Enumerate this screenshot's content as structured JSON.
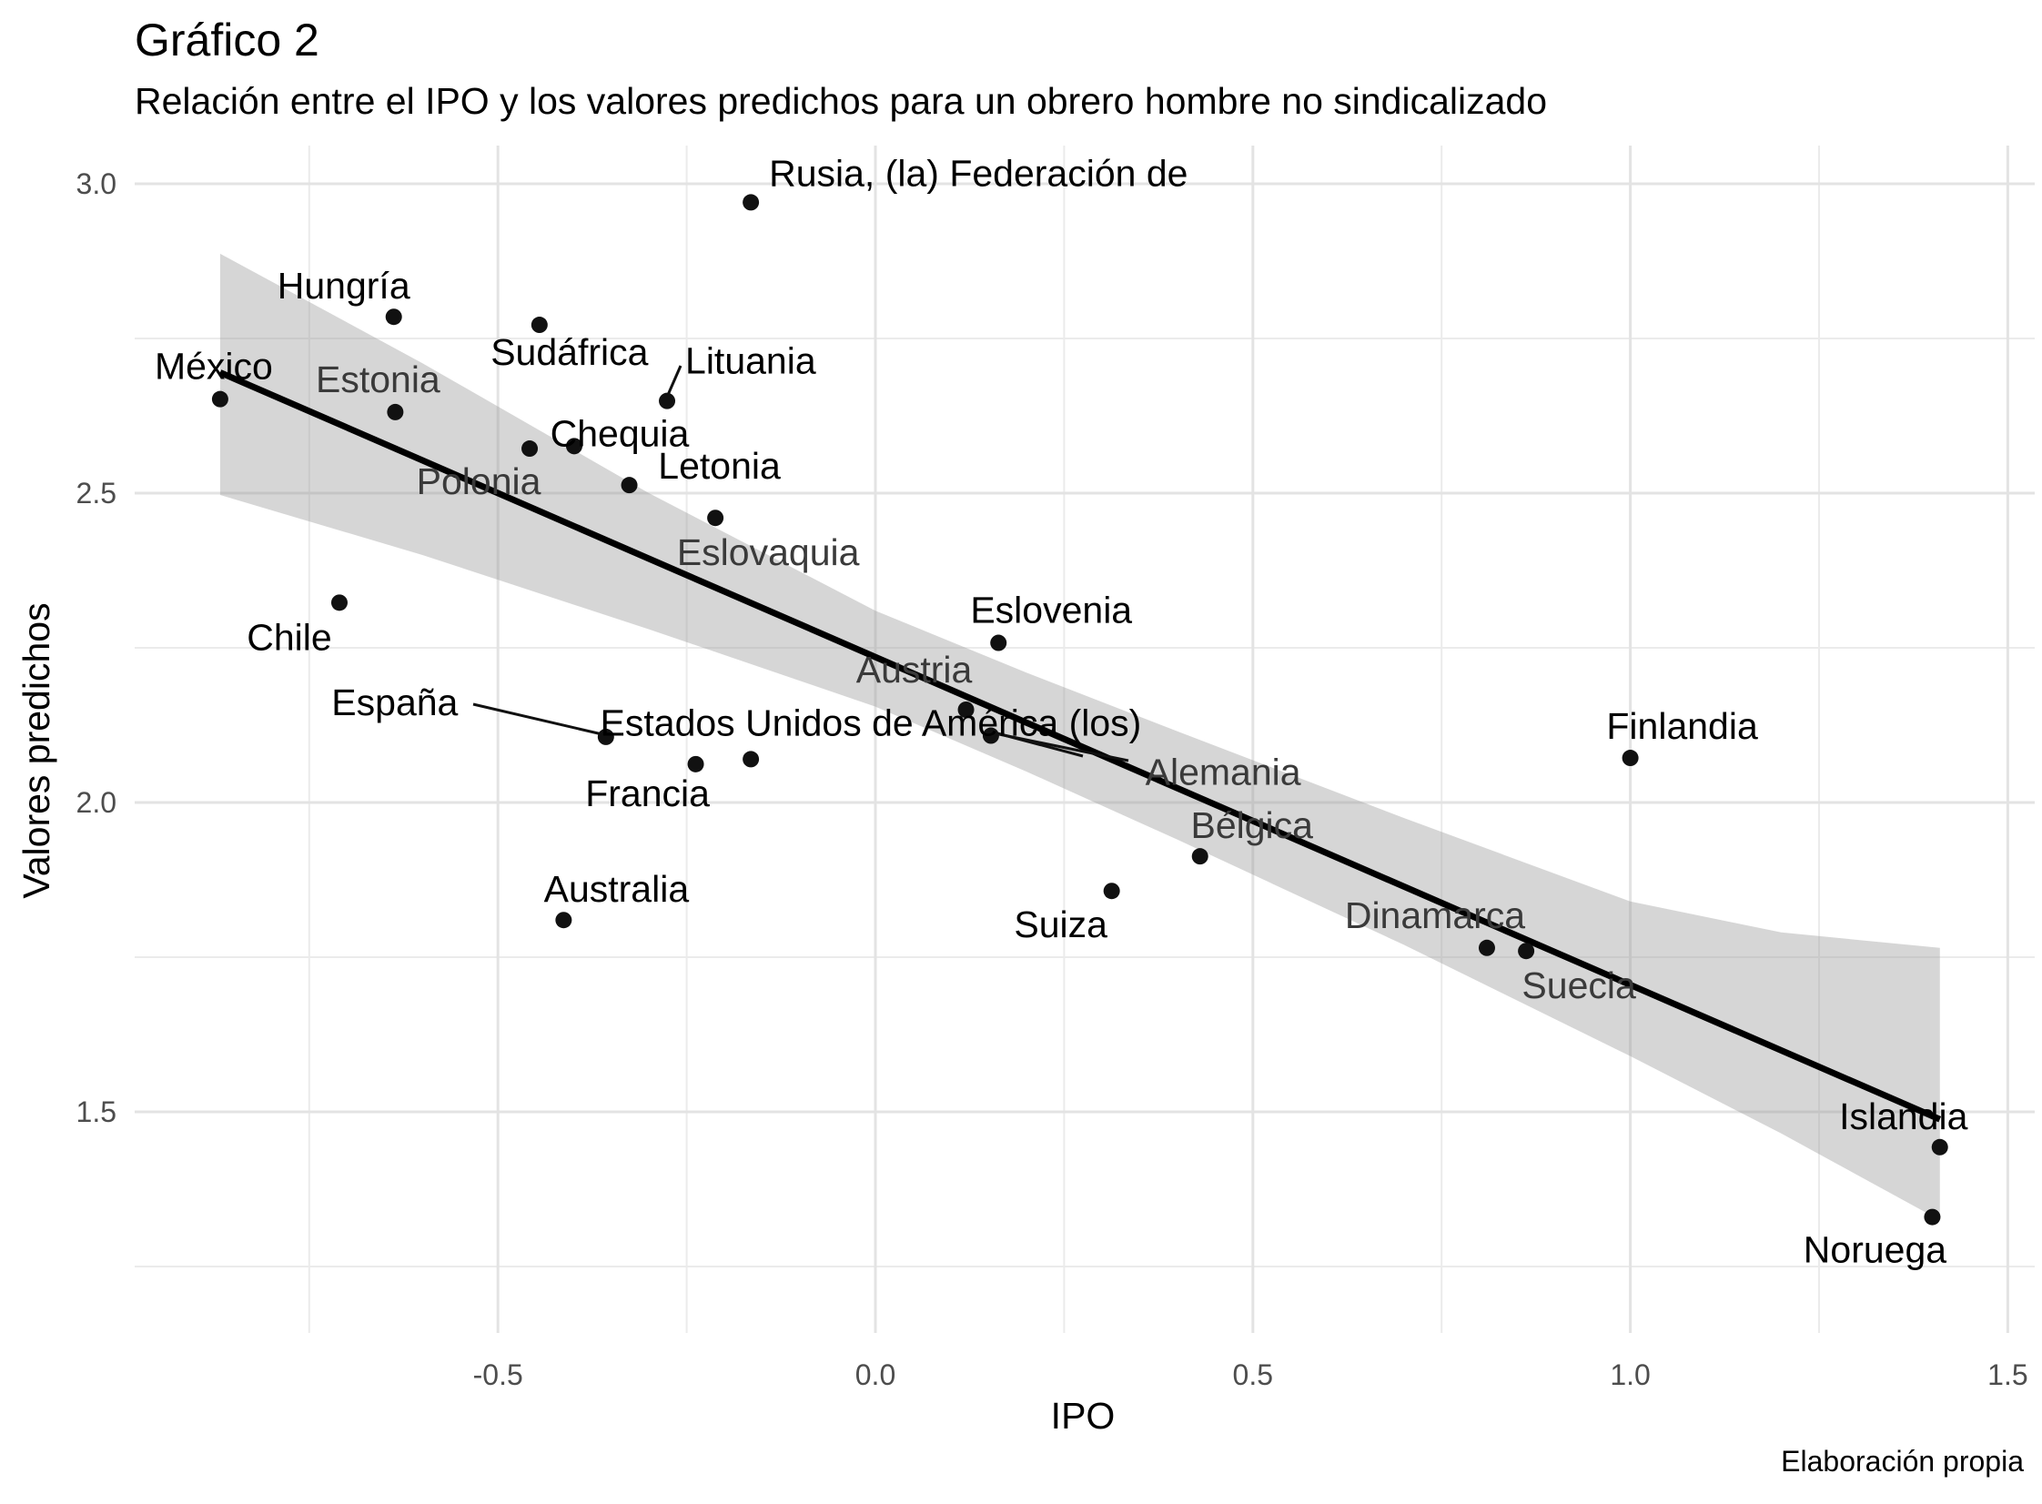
{
  "chart_data": {
    "type": "scatter",
    "title": "Gráfico 2",
    "subtitle": "Relación entre el IPO y los valores predichos para un obrero hombre no sindicalizado",
    "xlabel": "IPO",
    "ylabel": "Valores predichos",
    "caption": "Elaboración propia",
    "xlim": [
      -1.0,
      1.52
    ],
    "ylim": [
      1.125,
      3.06
    ],
    "x_ticks": [
      -0.5,
      0.0,
      0.5,
      1.0,
      1.5
    ],
    "x_tick_labels": [
      "-0.5",
      "0.0",
      "0.5",
      "1.0",
      "1.5"
    ],
    "y_ticks": [
      1.5,
      2.0,
      2.5,
      3.0
    ],
    "y_tick_labels": [
      "1.5",
      "2.0",
      "2.5",
      "3.0"
    ],
    "grid": true,
    "points": [
      {
        "label": "Rusia, (la) Federación de",
        "x": -0.165,
        "y": 2.97
      },
      {
        "label": "Hungría",
        "x": -0.638,
        "y": 2.785
      },
      {
        "label": "Sudáfrica",
        "x": -0.445,
        "y": 2.772
      },
      {
        "label": "Lituania",
        "x": -0.276,
        "y": 2.649
      },
      {
        "label": "México",
        "x": -0.868,
        "y": 2.652
      },
      {
        "label": "Estonia",
        "x": -0.636,
        "y": 2.631
      },
      {
        "label": "Chequia",
        "x": -0.399,
        "y": 2.576
      },
      {
        "label": "Polonia",
        "x": -0.458,
        "y": 2.572
      },
      {
        "label": "Letonia",
        "x": -0.326,
        "y": 2.513
      },
      {
        "label": "Eslovaquia",
        "x": -0.212,
        "y": 2.46
      },
      {
        "label": "Chile",
        "x": -0.71,
        "y": 2.323
      },
      {
        "label": "Eslovenia",
        "x": 0.163,
        "y": 2.258
      },
      {
        "label": "Austria",
        "x": 0.12,
        "y": 2.15
      },
      {
        "label": "España",
        "x": -0.357,
        "y": 2.106
      },
      {
        "label": "Estados Unidos de América (los)",
        "x": 0.153,
        "y": 2.108
      },
      {
        "label": "Alemania",
        "x": -0.165,
        "y": 2.07
      },
      {
        "label": "Francia",
        "x": -0.238,
        "y": 2.062
      },
      {
        "label": "Finlandia",
        "x": 1.0,
        "y": 2.072
      },
      {
        "label": "Bélgica",
        "x": 0.43,
        "y": 1.913
      },
      {
        "label": "Suiza",
        "x": 0.313,
        "y": 1.857
      },
      {
        "label": "Australia",
        "x": -0.413,
        "y": 1.81
      },
      {
        "label": "Dinamarca",
        "x": 0.81,
        "y": 1.765
      },
      {
        "label": "Suecia",
        "x": 0.862,
        "y": 1.76
      },
      {
        "label": "Islandia",
        "x": 1.41,
        "y": 1.443
      },
      {
        "label": "Noruega",
        "x": 1.4,
        "y": 1.33
      }
    ],
    "fit_line": {
      "x": [
        -0.868,
        1.41
      ],
      "y": [
        2.695,
        1.488
      ]
    },
    "confidence_band": {
      "x": [
        -0.868,
        -0.6,
        -0.3,
        0.0,
        0.2,
        0.4,
        0.7,
        1.0,
        1.2,
        1.41
      ],
      "lower": [
        2.497,
        2.4,
        2.28,
        2.155,
        2.05,
        1.94,
        1.77,
        1.59,
        1.465,
        1.325
      ],
      "upper": [
        2.887,
        2.71,
        2.5,
        2.31,
        2.21,
        2.115,
        1.975,
        1.84,
        1.79,
        1.765
      ]
    }
  }
}
